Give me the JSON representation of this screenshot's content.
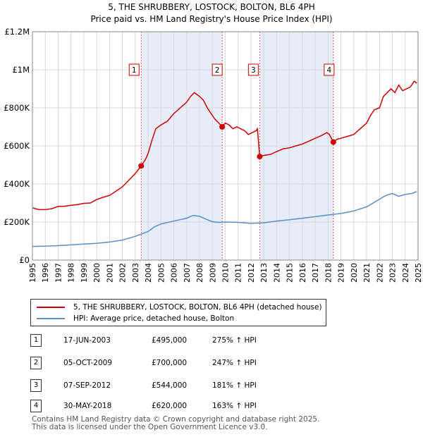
{
  "chart_data": {
    "type": "line",
    "title_line1": "5, THE SHRUBBERY, LOSTOCK, BOLTON, BL6 4PH",
    "title_line2": "Price paid vs. HM Land Registry's House Price Index (HPI)",
    "xlim": [
      1995,
      2025
    ],
    "ylim": [
      0,
      1200000
    ],
    "x_ticks": [
      1995,
      1996,
      1997,
      1998,
      1999,
      2000,
      2001,
      2002,
      2003,
      2004,
      2005,
      2006,
      2007,
      2008,
      2009,
      2010,
      2011,
      2012,
      2013,
      2014,
      2015,
      2016,
      2017,
      2018,
      2019,
      2020,
      2021,
      2022,
      2023,
      2024,
      2025
    ],
    "y_ticks": [
      {
        "value": 0,
        "label": "£0"
      },
      {
        "value": 200000,
        "label": "£200K"
      },
      {
        "value": 400000,
        "label": "£400K"
      },
      {
        "value": 600000,
        "label": "£600K"
      },
      {
        "value": 800000,
        "label": "£800K"
      },
      {
        "value": 1000000,
        "label": "£1M"
      },
      {
        "value": 1200000,
        "label": "£1.2M"
      }
    ],
    "colors": {
      "property": "#cc0000",
      "hpi": "#5b8fc9",
      "shade": "#e6ecf8",
      "vline": "#e05555",
      "grid": "#d9d9d9"
    },
    "series": [
      {
        "name": "5, THE SHRUBBERY, LOSTOCK, BOLTON, BL6 4PH (detached house)",
        "color": "#cc0000",
        "x": [
          1995.0,
          1995.5,
          1996.0,
          1996.5,
          1997.0,
          1997.5,
          1998.0,
          1998.5,
          1999.0,
          1999.5,
          2000.0,
          2000.5,
          2001.0,
          2001.5,
          2002.0,
          2002.5,
          2003.0,
          2003.46,
          2003.8,
          2004.0,
          2004.3,
          2004.6,
          2005.0,
          2005.5,
          2006.0,
          2006.5,
          2007.0,
          2007.3,
          2007.6,
          2007.8,
          2008.0,
          2008.3,
          2008.6,
          2008.9,
          2009.2,
          2009.5,
          2009.76,
          2010.0,
          2010.3,
          2010.6,
          2010.9,
          2011.2,
          2011.5,
          2011.8,
          2012.1,
          2012.4,
          2012.5,
          2012.68,
          2013.0,
          2013.5,
          2014.0,
          2014.5,
          2015.0,
          2015.5,
          2016.0,
          2016.5,
          2017.0,
          2017.5,
          2017.9,
          2018.1,
          2018.41,
          2018.7,
          2019.0,
          2019.5,
          2020.0,
          2020.5,
          2021.0,
          2021.3,
          2021.6,
          2022.0,
          2022.3,
          2022.6,
          2022.9,
          2023.2,
          2023.5,
          2023.8,
          2024.1,
          2024.4,
          2024.7,
          2024.9
        ],
        "y": [
          275000,
          265000,
          265000,
          270000,
          282000,
          283000,
          288000,
          292000,
          298000,
          300000,
          318000,
          330000,
          340000,
          362000,
          385000,
          420000,
          455000,
          495000,
          530000,
          560000,
          630000,
          690000,
          710000,
          730000,
          770000,
          800000,
          830000,
          860000,
          880000,
          870000,
          860000,
          840000,
          800000,
          770000,
          740000,
          720000,
          700000,
          720000,
          710000,
          690000,
          700000,
          690000,
          680000,
          660000,
          670000,
          680000,
          690000,
          544000,
          550000,
          555000,
          570000,
          585000,
          590000,
          600000,
          610000,
          625000,
          640000,
          655000,
          670000,
          660000,
          620000,
          635000,
          640000,
          650000,
          660000,
          690000,
          720000,
          760000,
          790000,
          800000,
          860000,
          880000,
          900000,
          880000,
          920000,
          890000,
          900000,
          910000,
          940000,
          930000
        ]
      },
      {
        "name": "HPI: Average price, detached house, Bolton",
        "color": "#5b8fc9",
        "x": [
          1995.0,
          1996.0,
          1997.0,
          1998.0,
          1999.0,
          2000.0,
          2001.0,
          2002.0,
          2003.0,
          2004.0,
          2004.5,
          2005.0,
          2006.0,
          2007.0,
          2007.5,
          2008.0,
          2008.5,
          2009.0,
          2009.5,
          2010.0,
          2011.0,
          2012.0,
          2013.0,
          2014.0,
          2015.0,
          2016.0,
          2017.0,
          2018.0,
          2019.0,
          2020.0,
          2021.0,
          2022.0,
          2022.5,
          2023.0,
          2023.5,
          2024.0,
          2024.5,
          2024.9
        ],
        "y": [
          72000,
          73000,
          76000,
          80000,
          84000,
          88000,
          95000,
          105000,
          125000,
          150000,
          175000,
          190000,
          205000,
          220000,
          235000,
          230000,
          215000,
          202000,
          198000,
          200000,
          198000,
          193000,
          196000,
          205000,
          212000,
          220000,
          228000,
          237000,
          245000,
          258000,
          280000,
          320000,
          340000,
          350000,
          335000,
          345000,
          350000,
          360000
        ]
      }
    ],
    "sales": [
      {
        "n": "1",
        "x": 2003.46,
        "y": 495000
      },
      {
        "n": "2",
        "x": 2009.76,
        "y": 700000
      },
      {
        "n": "3",
        "x": 2012.68,
        "y": 544000
      },
      {
        "n": "4",
        "x": 2018.41,
        "y": 620000
      }
    ],
    "shaded_ranges": [
      [
        2003.46,
        2009.76
      ],
      [
        2012.68,
        2018.41
      ]
    ]
  },
  "legend": {
    "property_label": "5, THE SHRUBBERY, LOSTOCK, BOLTON, BL6 4PH (detached house)",
    "hpi_label": "HPI: Average price, detached house, Bolton"
  },
  "sales_table": [
    {
      "n": "1",
      "date": "17-JUN-2003",
      "price": "£495,000",
      "hpi": "275% ↑ HPI"
    },
    {
      "n": "2",
      "date": "05-OCT-2009",
      "price": "£700,000",
      "hpi": "247% ↑ HPI"
    },
    {
      "n": "3",
      "date": "07-SEP-2012",
      "price": "£544,000",
      "hpi": "181% ↑ HPI"
    },
    {
      "n": "4",
      "date": "30-MAY-2018",
      "price": "£620,000",
      "hpi": "163% ↑ HPI"
    }
  ],
  "footer": {
    "line1": "Contains HM Land Registry data © Crown copyright and database right 2025.",
    "line2": "This data is licensed under the Open Government Licence v3.0."
  }
}
